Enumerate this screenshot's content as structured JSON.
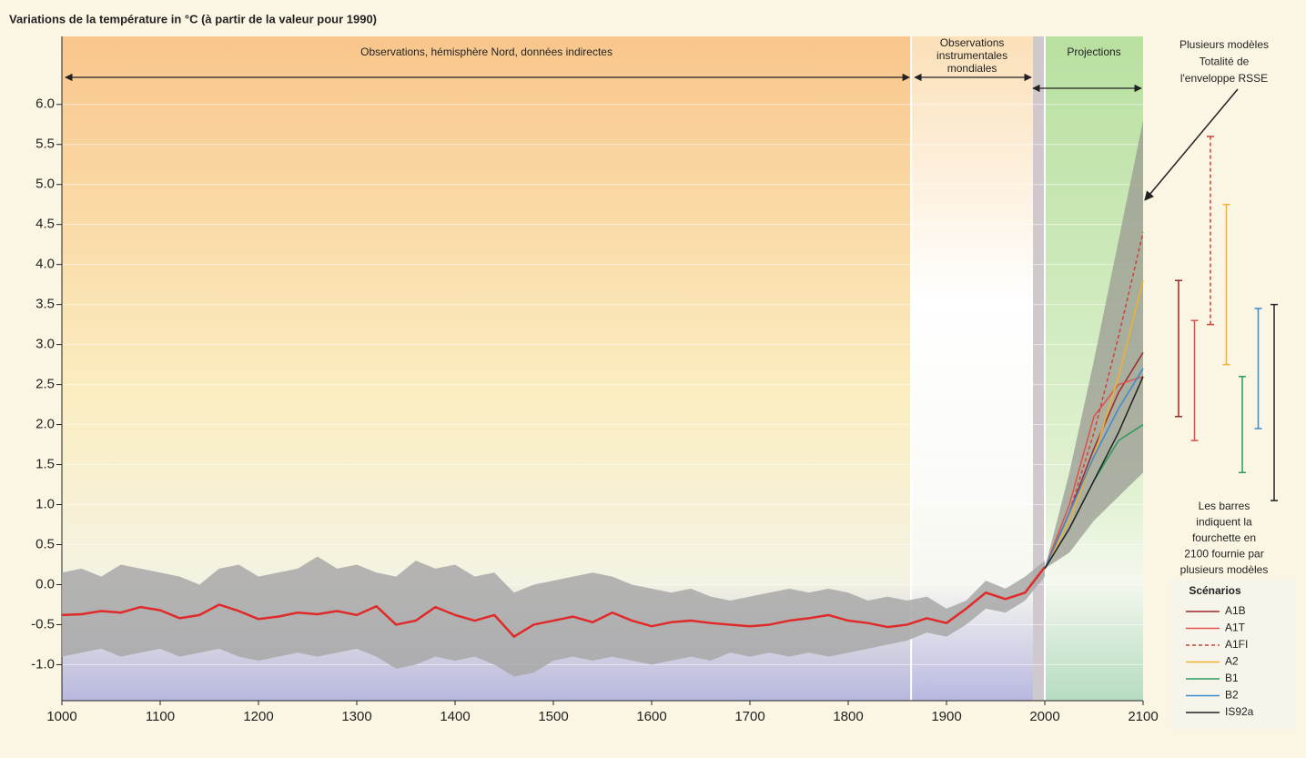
{
  "chart_data": {
    "type": "line",
    "title": "Variations de la température in °C (à partir de la valeur pour 1990)",
    "xlim": [
      1000,
      2100
    ],
    "ylim": [
      -1.45,
      6.85
    ],
    "xticks": [
      1000,
      1100,
      1200,
      1300,
      1400,
      1500,
      1600,
      1700,
      1800,
      1900,
      2000,
      2100
    ],
    "yticks": [
      {
        "value": 6,
        "label": "6.0"
      },
      5.5,
      {
        "value": 5,
        "label": "5.0"
      },
      4.5,
      {
        "value": 4,
        "label": "4.0"
      },
      3.5,
      {
        "value": 3,
        "label": "3.0"
      },
      2.5,
      {
        "value": 2,
        "label": "2.0"
      },
      1.5,
      {
        "value": 1,
        "label": "1.0"
      },
      0.5,
      {
        "value": 0,
        "label": "0.0"
      },
      -0.5,
      {
        "value": -1,
        "label": "-1.0"
      }
    ],
    "regions": [
      {
        "label": [
          "Observations, hémisphère Nord, données indirectes"
        ],
        "start": 1000,
        "end": 1864
      },
      {
        "label": [
          "Observations",
          "instrumentales",
          "mondiales"
        ],
        "start": 1864,
        "end": 1988
      },
      {
        "label": [
          "Projections"
        ],
        "start": 2000,
        "end": 2100
      }
    ],
    "x_proxy": [
      1000,
      1020,
      1040,
      1060,
      1080,
      1100,
      1120,
      1140,
      1160,
      1180,
      1200,
      1220,
      1240,
      1260,
      1280,
      1300,
      1320,
      1340,
      1360,
      1380,
      1400,
      1420,
      1440,
      1460,
      1480,
      1500,
      1520,
      1540,
      1560,
      1580,
      1600,
      1620,
      1640,
      1660,
      1680,
      1700,
      1720,
      1740,
      1760,
      1780,
      1800,
      1820,
      1840,
      1860,
      1880,
      1900,
      1920,
      1940,
      1960,
      1980,
      2000
    ],
    "proxy_range": {
      "color": "#a8a8a8",
      "upper": [
        0.15,
        0.2,
        0.1,
        0.25,
        0.2,
        0.15,
        0.1,
        0.0,
        0.2,
        0.25,
        0.1,
        0.15,
        0.2,
        0.35,
        0.2,
        0.25,
        0.15,
        0.1,
        0.3,
        0.2,
        0.25,
        0.1,
        0.15,
        -0.1,
        0.0,
        0.05,
        0.1,
        0.15,
        0.1,
        0.0,
        -0.05,
        -0.1,
        -0.05,
        -0.15,
        -0.2,
        -0.15,
        -0.1,
        -0.05,
        -0.1,
        -0.05,
        -0.1,
        -0.2,
        -0.15,
        -0.2,
        -0.15,
        -0.3,
        -0.2,
        0.05,
        -0.05,
        0.1,
        0.3
      ],
      "lower": [
        -0.9,
        -0.85,
        -0.8,
        -0.9,
        -0.85,
        -0.8,
        -0.9,
        -0.85,
        -0.8,
        -0.9,
        -0.95,
        -0.9,
        -0.85,
        -0.9,
        -0.85,
        -0.8,
        -0.9,
        -1.05,
        -1.0,
        -0.9,
        -0.95,
        -0.9,
        -1.0,
        -1.15,
        -1.1,
        -0.95,
        -0.9,
        -0.95,
        -0.9,
        -0.95,
        -1.0,
        -0.95,
        -0.9,
        -0.95,
        -0.85,
        -0.9,
        -0.85,
        -0.9,
        -0.85,
        -0.9,
        -0.85,
        -0.8,
        -0.75,
        -0.7,
        -0.6,
        -0.65,
        -0.5,
        -0.3,
        -0.35,
        -0.2,
        0.1
      ]
    },
    "reconstruction": {
      "color": "#e02a2a",
      "values": [
        -0.38,
        -0.37,
        -0.33,
        -0.35,
        -0.28,
        -0.32,
        -0.42,
        -0.38,
        -0.25,
        -0.33,
        -0.43,
        -0.4,
        -0.35,
        -0.37,
        -0.33,
        -0.38,
        -0.27,
        -0.5,
        -0.45,
        -0.28,
        -0.38,
        -0.45,
        -0.38,
        -0.65,
        -0.5,
        -0.45,
        -0.4,
        -0.47,
        -0.35,
        -0.45,
        -0.52,
        -0.47,
        -0.45,
        -0.48,
        -0.5,
        -0.52,
        -0.5,
        -0.45,
        -0.42,
        -0.38,
        -0.45,
        -0.48,
        -0.53,
        -0.5,
        -0.42,
        -0.48,
        -0.3,
        -0.1,
        -0.18,
        -0.1,
        0.22
      ]
    },
    "x_projection": [
      2000,
      2025,
      2050,
      2075,
      2100
    ],
    "envelope": {
      "color": "#9a9a92",
      "upper": [
        0.2,
        1.4,
        2.8,
        4.3,
        5.8
      ],
      "lower": [
        0.2,
        0.4,
        0.8,
        1.1,
        1.4
      ]
    },
    "annotation_envelope": [
      "Plusieurs modèles",
      "Totalité de",
      "l'enveloppe RSSE"
    ],
    "annotation_bars": [
      "Les barres",
      "indiquent la",
      "fourchette en",
      "2100 fournie par",
      "plusieurs modèles"
    ],
    "legend_title": "Scénarios",
    "series": [
      {
        "name": "A1B",
        "color": "#9b2a2a",
        "dashed": false,
        "values": [
          0.2,
          0.9,
          1.7,
          2.4,
          2.9
        ],
        "range_2100": [
          2.1,
          3.8
        ]
      },
      {
        "name": "A1T",
        "color": "#e0504a",
        "dashed": false,
        "values": [
          0.2,
          1.0,
          2.1,
          2.5,
          2.6
        ],
        "range_2100": [
          1.8,
          3.3
        ]
      },
      {
        "name": "A1FI",
        "color": "#d0403a",
        "dashed": true,
        "values": [
          0.2,
          0.9,
          1.9,
          3.1,
          4.4
        ],
        "range_2100": [
          3.25,
          5.6
        ]
      },
      {
        "name": "A2",
        "color": "#f0b030",
        "dashed": false,
        "values": [
          0.2,
          0.8,
          1.6,
          2.6,
          3.8
        ],
        "range_2100": [
          2.75,
          4.75
        ]
      },
      {
        "name": "B1",
        "color": "#2a9a5a",
        "dashed": false,
        "values": [
          0.2,
          0.7,
          1.3,
          1.8,
          2.0
        ],
        "range_2100": [
          1.4,
          2.6
        ]
      },
      {
        "name": "B2",
        "color": "#3a8ad0",
        "dashed": false,
        "values": [
          0.2,
          0.9,
          1.6,
          2.2,
          2.7
        ],
        "range_2100": [
          1.95,
          3.45
        ]
      },
      {
        "name": "IS92a",
        "color": "#222222",
        "dashed": false,
        "values": [
          0.2,
          0.7,
          1.3,
          1.9,
          2.6
        ],
        "range_2100": [
          1.05,
          3.5
        ]
      }
    ]
  }
}
